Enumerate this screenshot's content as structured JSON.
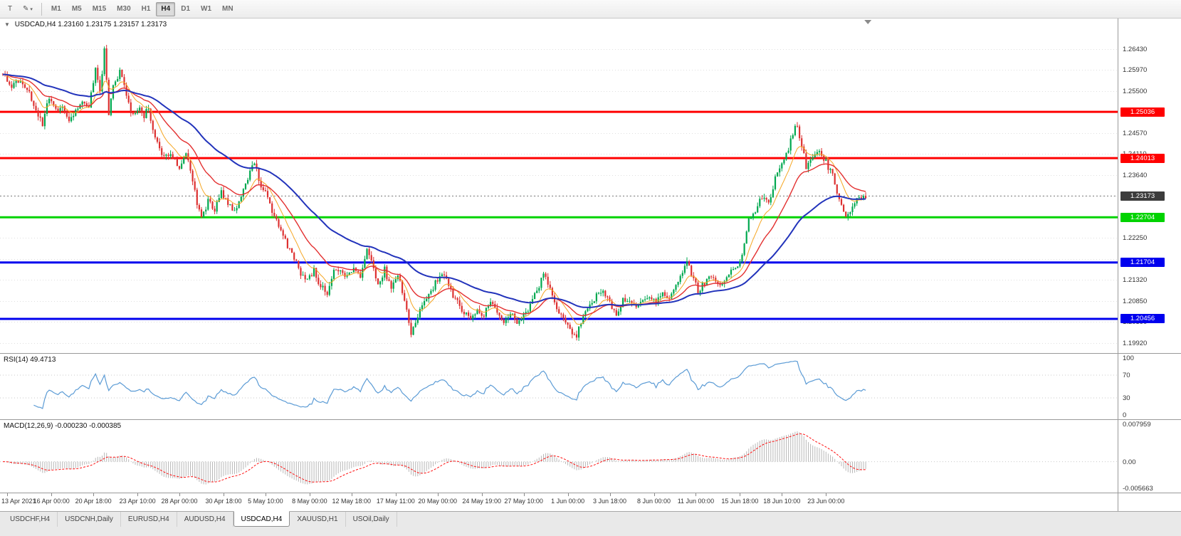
{
  "toolbar": {
    "tool_button_glyph": "T",
    "draw_glyph": "✎",
    "caret_glyph": "▾",
    "timeframes": [
      "M1",
      "M5",
      "M15",
      "M30",
      "H1",
      "H4",
      "D1",
      "W1",
      "MN"
    ],
    "active_timeframe": "H4"
  },
  "chart": {
    "collapse_glyph": "▼",
    "symbol_info": "USDCAD,H4 1.23160 1.23175 1.23157 1.23173",
    "rsi_label": "RSI(14) 49.4713",
    "macd_label": "MACD(12,26,9) -0.000230 -0.000385"
  },
  "tabs": {
    "items": [
      "USDCHF,H4",
      "USDCNH,Daily",
      "EURUSD,H4",
      "AUDUSD,H4",
      "USDCAD,H4",
      "XAUUSD,H1",
      "USOil,Daily"
    ],
    "active": "USDCAD,H4"
  },
  "chart_data": {
    "type": "candlestick",
    "symbol": "USDCAD",
    "timeframe": "H4",
    "ohlc_display": {
      "open": "1.23160",
      "high": "1.23175",
      "low": "1.23157",
      "close": "1.23173"
    },
    "colors": {
      "bull": "#00a84f",
      "bear": "#dd3131",
      "grid": "#dedede",
      "background": "#ffffff"
    },
    "price_axis": {
      "min": 1.197,
      "max": 1.271,
      "gridlines": [
        1.1992,
        1.20385,
        1.2085,
        1.21315,
        1.2178,
        1.22245,
        1.2271,
        1.23175,
        1.2364,
        1.24105,
        1.2457,
        1.25035,
        1.255,
        1.25965,
        1.2643
      ],
      "tick_labels": [
        "1.19920",
        "1.20390",
        "1.20850",
        "1.21320",
        "1.22250",
        "1.23640",
        "1.24110",
        "1.24570",
        "1.25500",
        "1.25970",
        "1.26430"
      ]
    },
    "levels": [
      {
        "value": 1.25036,
        "label": "1.25036",
        "color": "#ff0000",
        "width": 3
      },
      {
        "value": 1.24013,
        "label": "1.24013",
        "color": "#ff0000",
        "width": 3
      },
      {
        "value": 1.22704,
        "label": "1.22704",
        "color": "#00d300",
        "width": 3
      },
      {
        "value": 1.21704,
        "label": "1.21704",
        "color": "#0000ee",
        "width": 3
      },
      {
        "value": 1.20456,
        "label": "1.20456",
        "color": "#0000ee",
        "width": 3
      }
    ],
    "current_price": {
      "value": 1.23173,
      "label": "1.23173",
      "color": "#3c3c3c"
    },
    "moving_averages": [
      {
        "period": 10,
        "color": "#f5a623",
        "width": 1
      },
      {
        "period": 24,
        "color": "#e33030",
        "width": 1.4
      },
      {
        "period": 60,
        "color": "#2233bb",
        "width": 2
      }
    ],
    "rsi": {
      "period": 14,
      "current": "49.4713",
      "color": "#5b9bd5",
      "levels": [
        70,
        30
      ],
      "scale": [
        100,
        70,
        30,
        0
      ]
    },
    "macd": {
      "fast": 12,
      "slow": 26,
      "signal": 9,
      "current_macd": "-0.000230",
      "current_signal": "-0.000385",
      "scale_max": 0.007959,
      "scale_min": -0.005663,
      "scale_labels": [
        "0.007959",
        "0.00",
        "-0.005663"
      ],
      "scale_values": [
        0.007959,
        0,
        -0.005663
      ],
      "hist_color": "#b8b8b8",
      "signal_color": "#ff1111"
    },
    "time_axis": {
      "labels": [
        "13 Apr 2021",
        "16 Apr 00:00",
        "20 Apr 18:00",
        "23 Apr 10:00",
        "28 Apr 00:00",
        "30 Apr 18:00",
        "5 May 10:00",
        "8 May 00:00",
        "12 May 18:00",
        "17 May 11:00",
        "20 May 00:00",
        "24 May 19:00",
        "27 May 10:00",
        "1 Jun 00:00",
        "3 Jun 18:00",
        "8 Jun 00:00",
        "11 Jun 00:00",
        "15 Jun 18:00",
        "18 Jun 10:00",
        "23 Jun 00:00"
      ],
      "indices": [
        2,
        22,
        41,
        61,
        80,
        100,
        119,
        139,
        158,
        178,
        197,
        217,
        236,
        256,
        275,
        295,
        314,
        334,
        353,
        373
      ]
    },
    "candles": {
      "count": 392,
      "keyframes": [
        [
          0,
          1.2588
        ],
        [
          4,
          1.2562
        ],
        [
          8,
          1.257
        ],
        [
          12,
          1.2545
        ],
        [
          15,
          1.2502
        ],
        [
          18,
          1.2478
        ],
        [
          21,
          1.2538
        ],
        [
          24,
          1.2505
        ],
        [
          27,
          1.252
        ],
        [
          30,
          1.2482
        ],
        [
          33,
          1.2505
        ],
        [
          36,
          1.253
        ],
        [
          39,
          1.2518
        ],
        [
          42,
          1.26
        ],
        [
          44,
          1.2548
        ],
        [
          46,
          1.2638
        ],
        [
          48,
          1.2498
        ],
        [
          50,
          1.256
        ],
        [
          53,
          1.2592
        ],
        [
          56,
          1.254
        ],
        [
          58,
          1.2495
        ],
        [
          61,
          1.2512
        ],
        [
          64,
          1.2496
        ],
        [
          66,
          1.251
        ],
        [
          69,
          1.2442
        ],
        [
          72,
          1.2412
        ],
        [
          75,
          1.2408
        ],
        [
          78,
          1.2398
        ],
        [
          80,
          1.2372
        ],
        [
          83,
          1.2418
        ],
        [
          86,
          1.2355
        ],
        [
          88,
          1.2302
        ],
        [
          90,
          1.2268
        ],
        [
          93,
          1.2305
        ],
        [
          96,
          1.2288
        ],
        [
          99,
          1.2325
        ],
        [
          102,
          1.2298
        ],
        [
          105,
          1.2285
        ],
        [
          108,
          1.2318
        ],
        [
          111,
          1.236
        ],
        [
          114,
          1.239
        ],
        [
          117,
          1.234
        ],
        [
          120,
          1.2318
        ],
        [
          123,
          1.2268
        ],
        [
          126,
          1.2242
        ],
        [
          129,
          1.2205
        ],
        [
          132,
          1.2178
        ],
        [
          135,
          1.2148
        ],
        [
          138,
          1.2128
        ],
        [
          141,
          1.2152
        ],
        [
          144,
          1.2118
        ],
        [
          147,
          1.2105
        ],
        [
          150,
          1.2148
        ],
        [
          153,
          1.216
        ],
        [
          156,
          1.2138
        ],
        [
          159,
          1.2158
        ],
        [
          162,
          1.2142
        ],
        [
          165,
          1.2198
        ],
        [
          167,
          1.2172
        ],
        [
          170,
          1.212
        ],
        [
          173,
          1.2155
        ],
        [
          176,
          1.2108
        ],
        [
          179,
          1.2145
        ],
        [
          182,
          1.2088
        ],
        [
          185,
          1.2012
        ],
        [
          188,
          1.2052
        ],
        [
          191,
          1.2082
        ],
        [
          194,
          1.2108
        ],
        [
          197,
          1.2135
        ],
        [
          200,
          1.2148
        ],
        [
          203,
          1.2108
        ],
        [
          206,
          1.2082
        ],
        [
          209,
          1.206
        ],
        [
          212,
          1.2045
        ],
        [
          215,
          1.207
        ],
        [
          218,
          1.2052
        ],
        [
          221,
          1.2085
        ],
        [
          224,
          1.206
        ],
        [
          227,
          1.2042
        ],
        [
          230,
          1.2062
        ],
        [
          233,
          1.2038
        ],
        [
          236,
          1.2055
        ],
        [
          239,
          1.2075
        ],
        [
          242,
          1.2108
        ],
        [
          245,
          1.2142
        ],
        [
          248,
          1.2118
        ],
        [
          251,
          1.2072
        ],
        [
          254,
          1.2048
        ],
        [
          257,
          1.202
        ],
        [
          260,
          1.2008
        ],
        [
          263,
          1.2052
        ],
        [
          266,
          1.2075
        ],
        [
          269,
          1.2095
        ],
        [
          272,
          1.2112
        ],
        [
          275,
          1.208
        ],
        [
          278,
          1.2055
        ],
        [
          281,
          1.2088
        ],
        [
          284,
          1.2092
        ],
        [
          287,
          1.2075
        ],
        [
          290,
          1.2088
        ],
        [
          293,
          1.2098
        ],
        [
          296,
          1.2082
        ],
        [
          299,
          1.2105
        ],
        [
          302,
          1.2092
        ],
        [
          305,
          1.2118
        ],
        [
          308,
          1.2145
        ],
        [
          310,
          1.2172
        ],
        [
          312,
          1.2142
        ],
        [
          315,
          1.2108
        ],
        [
          318,
          1.2125
        ],
        [
          321,
          1.2142
        ],
        [
          324,
          1.2118
        ],
        [
          327,
          1.2135
        ],
        [
          330,
          1.2148
        ],
        [
          333,
          1.216
        ],
        [
          335,
          1.2185
        ],
        [
          338,
          1.2262
        ],
        [
          341,
          1.2285
        ],
        [
          344,
          1.2318
        ],
        [
          347,
          1.2302
        ],
        [
          350,
          1.2355
        ],
        [
          353,
          1.2388
        ],
        [
          356,
          1.2418
        ],
        [
          359,
          1.2478
        ],
        [
          361,
          1.2452
        ],
        [
          364,
          1.2382
        ],
        [
          367,
          1.2398
        ],
        [
          370,
          1.2415
        ],
        [
          373,
          1.2392
        ],
        [
          376,
          1.2362
        ],
        [
          379,
          1.2305
        ],
        [
          382,
          1.2268
        ],
        [
          385,
          1.2298
        ],
        [
          388,
          1.2312
        ],
        [
          391,
          1.23173
        ]
      ]
    }
  }
}
